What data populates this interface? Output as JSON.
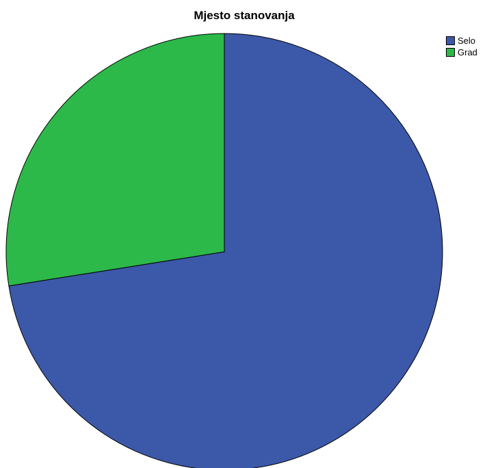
{
  "chart_data": {
    "type": "pie",
    "title": "Mjesto stanovanja",
    "slices": [
      {
        "label": "Selo",
        "value": 72.5,
        "color": "#3c58a8"
      },
      {
        "label": "Grad",
        "value": 27.5,
        "color": "#2db84a"
      }
    ],
    "legend_position": "top-right"
  }
}
